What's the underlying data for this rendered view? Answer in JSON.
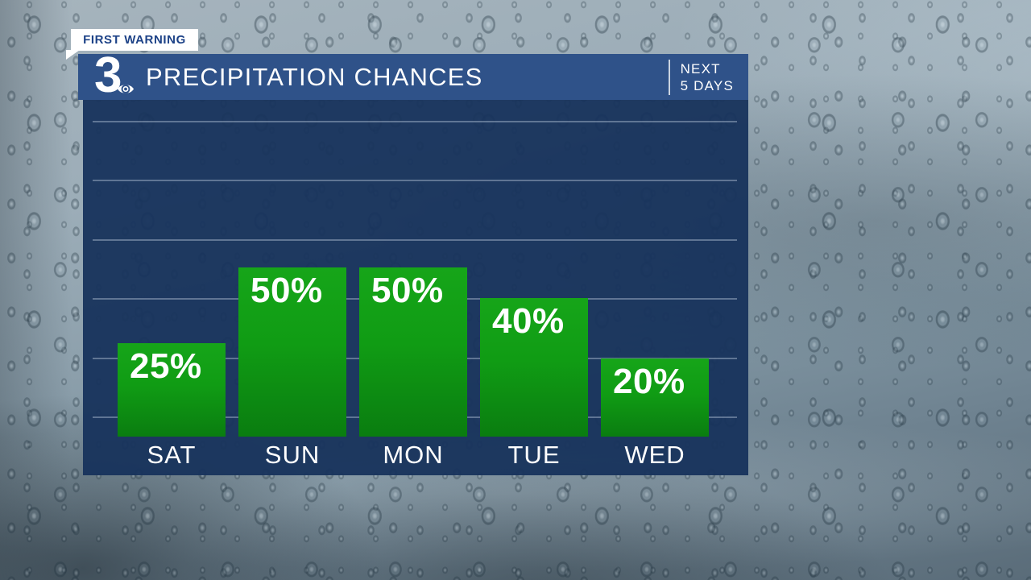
{
  "first_warning_tab": {
    "label": "FIRST WARNING"
  },
  "header": {
    "station_logo": "3",
    "title": "PRECIPITATION CHANCES",
    "period_line1": "NEXT",
    "period_line2": "5 DAYS"
  },
  "chart_data": {
    "type": "bar",
    "title": "PRECIPITATION CHANCES",
    "subtitle": "NEXT 5 DAYS",
    "categories": [
      "SAT",
      "SUN",
      "MON",
      "TUE",
      "WED"
    ],
    "values": [
      25,
      50,
      50,
      40,
      20
    ],
    "value_labels": [
      "25%",
      "50%",
      "50%",
      "40%",
      "20%"
    ],
    "unit": "%",
    "ylim": [
      0,
      100
    ],
    "grid": true,
    "gridline_count": 6,
    "legend": "none",
    "bar_color_top": "#16a519",
    "bar_color_bottom": "#0a7d10"
  },
  "colors": {
    "header_blue": "#2f5289",
    "panel_navy": "#17335c",
    "bar_green": "#0f9a14",
    "tab_text_blue": "#1d4287",
    "text_white": "#ffffff",
    "gridline": "#cddaea"
  }
}
